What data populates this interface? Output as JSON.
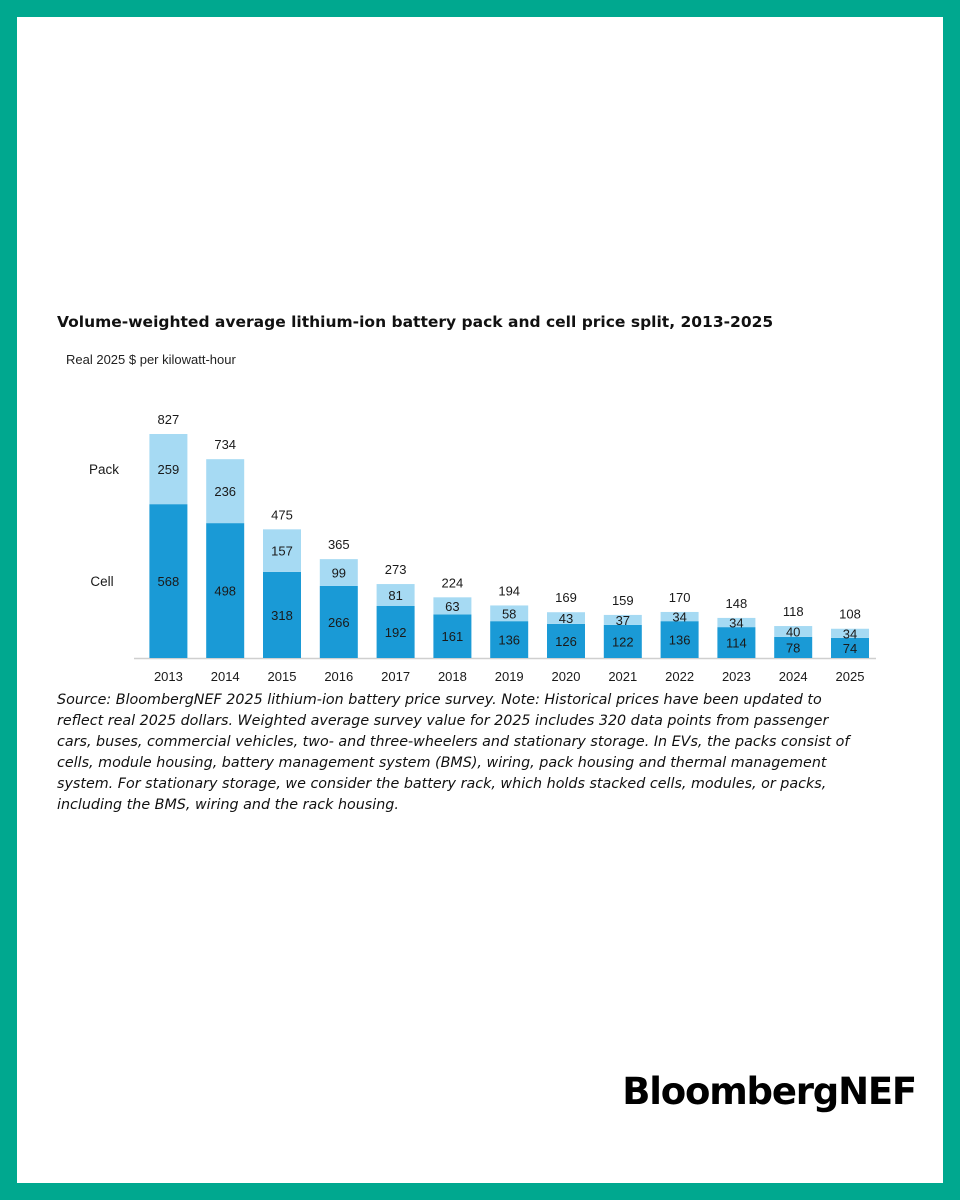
{
  "note": "Source: BloombergNEF 2025 lithium-ion battery price survey. Note: Historical prices have been updated to reflect real 2025 dollars. Weighted average survey value for 2025 includes 320 data points from passenger cars, buses, commercial vehicles, two- and three-wheelers and stationary storage.  In EVs, the packs consist of cells, module housing, battery management system (BMS), wiring, pack housing and thermal management system. For stationary storage, we consider the battery rack, which holds stacked cells, modules, or packs, including the BMS, wiring and the rack housing.",
  "brand": "BloombergNEF",
  "colors": {
    "background": "#00a88f",
    "cell": "#1a9ad6",
    "pack": "#a6daf3"
  },
  "chart_data": {
    "type": "bar",
    "stacked": true,
    "title": "Volume-weighted average lithium-ion battery pack and cell price split, 2013-2025",
    "ylabel": "Real 2025 $ per kilowatt-hour",
    "categories": [
      "2013",
      "2014",
      "2015",
      "2016",
      "2017",
      "2018",
      "2019",
      "2020",
      "2021",
      "2022",
      "2023",
      "2024",
      "2025"
    ],
    "series": [
      {
        "name": "Cell",
        "values": [
          568,
          498,
          318,
          266,
          192,
          161,
          136,
          126,
          122,
          136,
          114,
          78,
          74
        ]
      },
      {
        "name": "Pack",
        "values": [
          259,
          236,
          157,
          99,
          81,
          63,
          58,
          43,
          37,
          34,
          34,
          40,
          34
        ]
      }
    ],
    "totals": [
      827,
      734,
      475,
      365,
      273,
      224,
      194,
      169,
      159,
      170,
      148,
      118,
      108
    ],
    "legend": "left, inline labels beside first bar",
    "ylim": [
      0,
      827
    ],
    "grid": false
  }
}
